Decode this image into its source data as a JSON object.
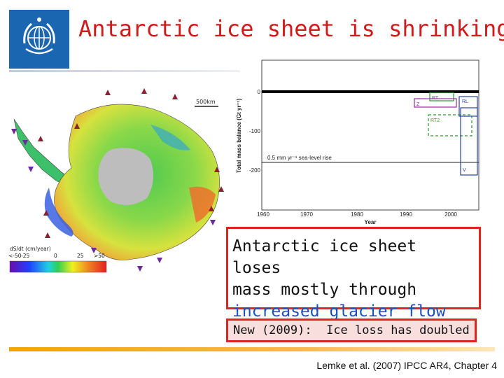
{
  "slide": {
    "title": "Antarctic ice sheet is shrinking",
    "citation": "Lemke et al. (2007) IPCC AR4, Chapter 4"
  },
  "map": {
    "scale_bar": "500km",
    "colorbar_label": "dS/dt (cm/year)",
    "colorbar_ticks": [
      "<-50",
      "-25",
      "0",
      "25",
      ">50"
    ]
  },
  "graph": {
    "ylabel": "Total mass balance (Gt yr⁻¹)",
    "xlabel": "Year",
    "y_ticks": [
      "0",
      "-100",
      "-200"
    ],
    "x_ticks": [
      "1960",
      "1970",
      "1980",
      "1990",
      "2000"
    ],
    "reference_label": "0.5 mm yr⁻¹ sea-level rise",
    "box_labels": [
      "RT",
      "Z",
      "RL",
      "RT2",
      "V"
    ]
  },
  "callout": {
    "line1": "Antarctic ice sheet loses",
    "line2": "mass mostly through",
    "highlight": "increased glacier flow"
  },
  "note": {
    "label": "New (2009):",
    "text": "Ice loss has doubled"
  },
  "colors": {
    "title": "#d11a1a",
    "highlight": "#1f4fbf",
    "box_border": "#e02424",
    "note_bg": "#f9dede",
    "logo_bg": "#1b66b1",
    "footer_bar": "#f5a100"
  }
}
